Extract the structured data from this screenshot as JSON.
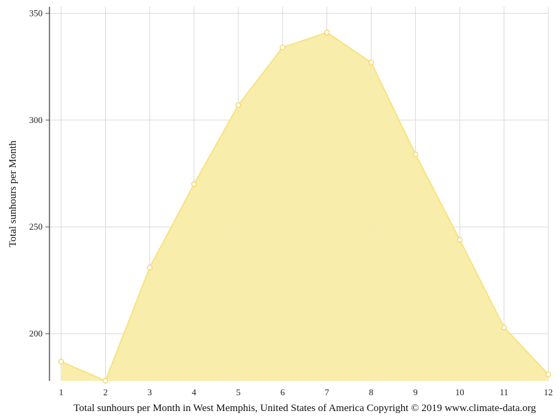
{
  "chart_data": {
    "type": "area",
    "title": "",
    "xlabel": "Total sunhours per Month in West Memphis, United States of America Copyright © 2019 www.climate-data.org",
    "ylabel": "Total sunhours per Month",
    "x": [
      1,
      2,
      3,
      4,
      5,
      6,
      7,
      8,
      9,
      10,
      11,
      12
    ],
    "x_tick_labels": [
      "1",
      "2",
      "3",
      "4",
      "5",
      "6",
      "7",
      "8",
      "9",
      "10",
      "11",
      "12"
    ],
    "series": [
      {
        "values": [
          187,
          178,
          231,
          270,
          307,
          334,
          341,
          327,
          284,
          244,
          203,
          181
        ]
      }
    ],
    "ylim": [
      178,
      353
    ],
    "y_ticks": [
      200,
      250,
      300,
      350
    ],
    "y_tick_labels": [
      "200",
      "250",
      "300",
      "350"
    ],
    "grid": true,
    "legend": "none",
    "colors": {
      "fill": "#f9eca8",
      "line": "#f7e37f",
      "marker_fill": "#ffffff",
      "marker_stroke": "#f2d35a",
      "grid": "#d9d9d9",
      "axis": "#555555"
    }
  }
}
